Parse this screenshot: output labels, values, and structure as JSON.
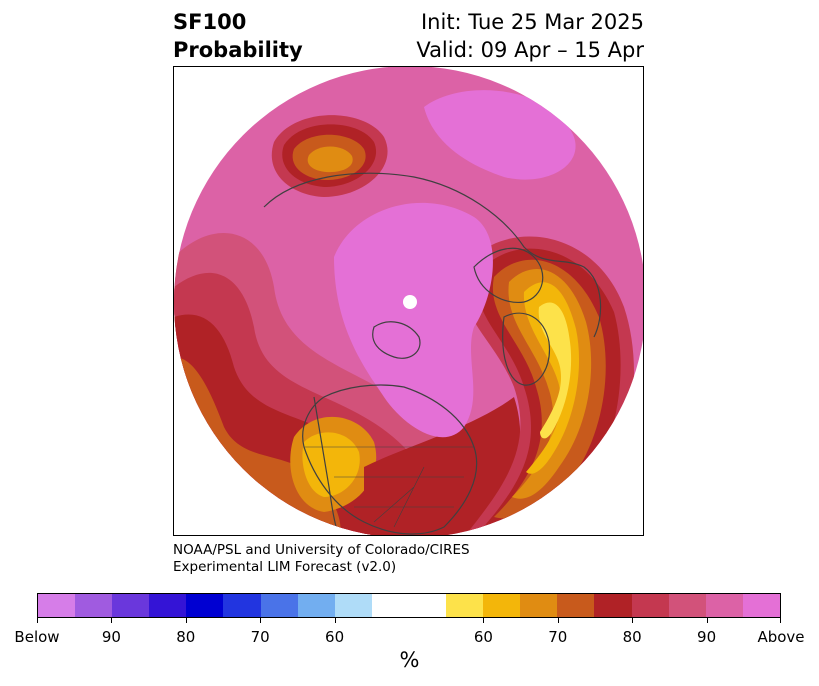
{
  "header": {
    "title_line1": "SF100",
    "title_line2": "Probability",
    "init_text": "Init: Tue 25 Mar 2025",
    "valid_text": "Valid: 09 Apr – 15 Apr"
  },
  "credit": {
    "line1": "NOAA/PSL and University of Colorado/CIRES",
    "line2": "Experimental LIM Forecast (v2.0)"
  },
  "colorbar": {
    "segments": [
      "#d67de8",
      "#a05be0",
      "#6a37dc",
      "#3414d6",
      "#0000d2",
      "#2235e0",
      "#4a73e8",
      "#72aef0",
      "#afdcf8",
      "#ffffff",
      "#ffffff",
      "#fde24a",
      "#f3b60a",
      "#e08c12",
      "#c85a1c",
      "#b02226",
      "#c43850",
      "#d2527a",
      "#dc62a6",
      "#e470d6"
    ],
    "tick_labels": [
      "Below",
      "90",
      "80",
      "70",
      "60",
      "60",
      "70",
      "80",
      "90",
      "Above"
    ],
    "unit_label": "%"
  },
  "map": {
    "colors": {
      "above_max": "#e470d6",
      "above_90": "#dc62a6",
      "above_85": "#d2527a",
      "above_80": "#c43850",
      "above_75": "#b02226",
      "above_70": "#c85a1c",
      "above_65": "#e08c12",
      "above_60": "#f3b60a",
      "above_55": "#fde24a",
      "neutral": "#ffffff",
      "coastline": "#404040"
    }
  }
}
